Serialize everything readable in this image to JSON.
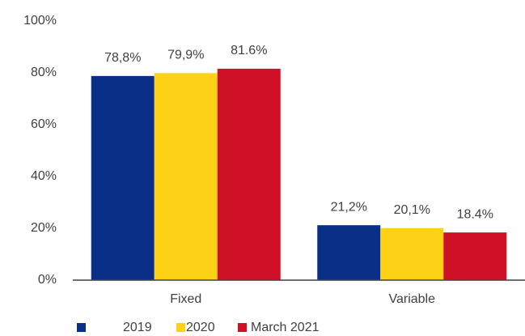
{
  "chart_data": {
    "type": "bar",
    "categories": [
      "Fixed",
      "Variable"
    ],
    "series": [
      {
        "name": "2019",
        "color": "#0a2f87",
        "values": [
          78.8,
          21.2
        ],
        "value_labels": [
          "78,8%",
          "21,2%"
        ]
      },
      {
        "name": "2020",
        "color": "#fcd116",
        "values": [
          79.9,
          20.1
        ],
        "value_labels": [
          "79,9%",
          "20,1%"
        ]
      },
      {
        "name": "March 2021",
        "color": "#ce1126",
        "values": [
          81.6,
          18.4
        ],
        "value_labels": [
          "81.6%",
          "18.4%"
        ]
      }
    ],
    "ylim": [
      0,
      100
    ],
    "yticks": [
      {
        "value": 0,
        "label": "0%"
      },
      {
        "value": 20,
        "label": "20%"
      },
      {
        "value": 40,
        "label": "40%"
      },
      {
        "value": 60,
        "label": "60%"
      },
      {
        "value": 80,
        "label": "80%"
      },
      {
        "value": 100,
        "label": "100%"
      }
    ],
    "grid": false,
    "legend": "bottom"
  }
}
